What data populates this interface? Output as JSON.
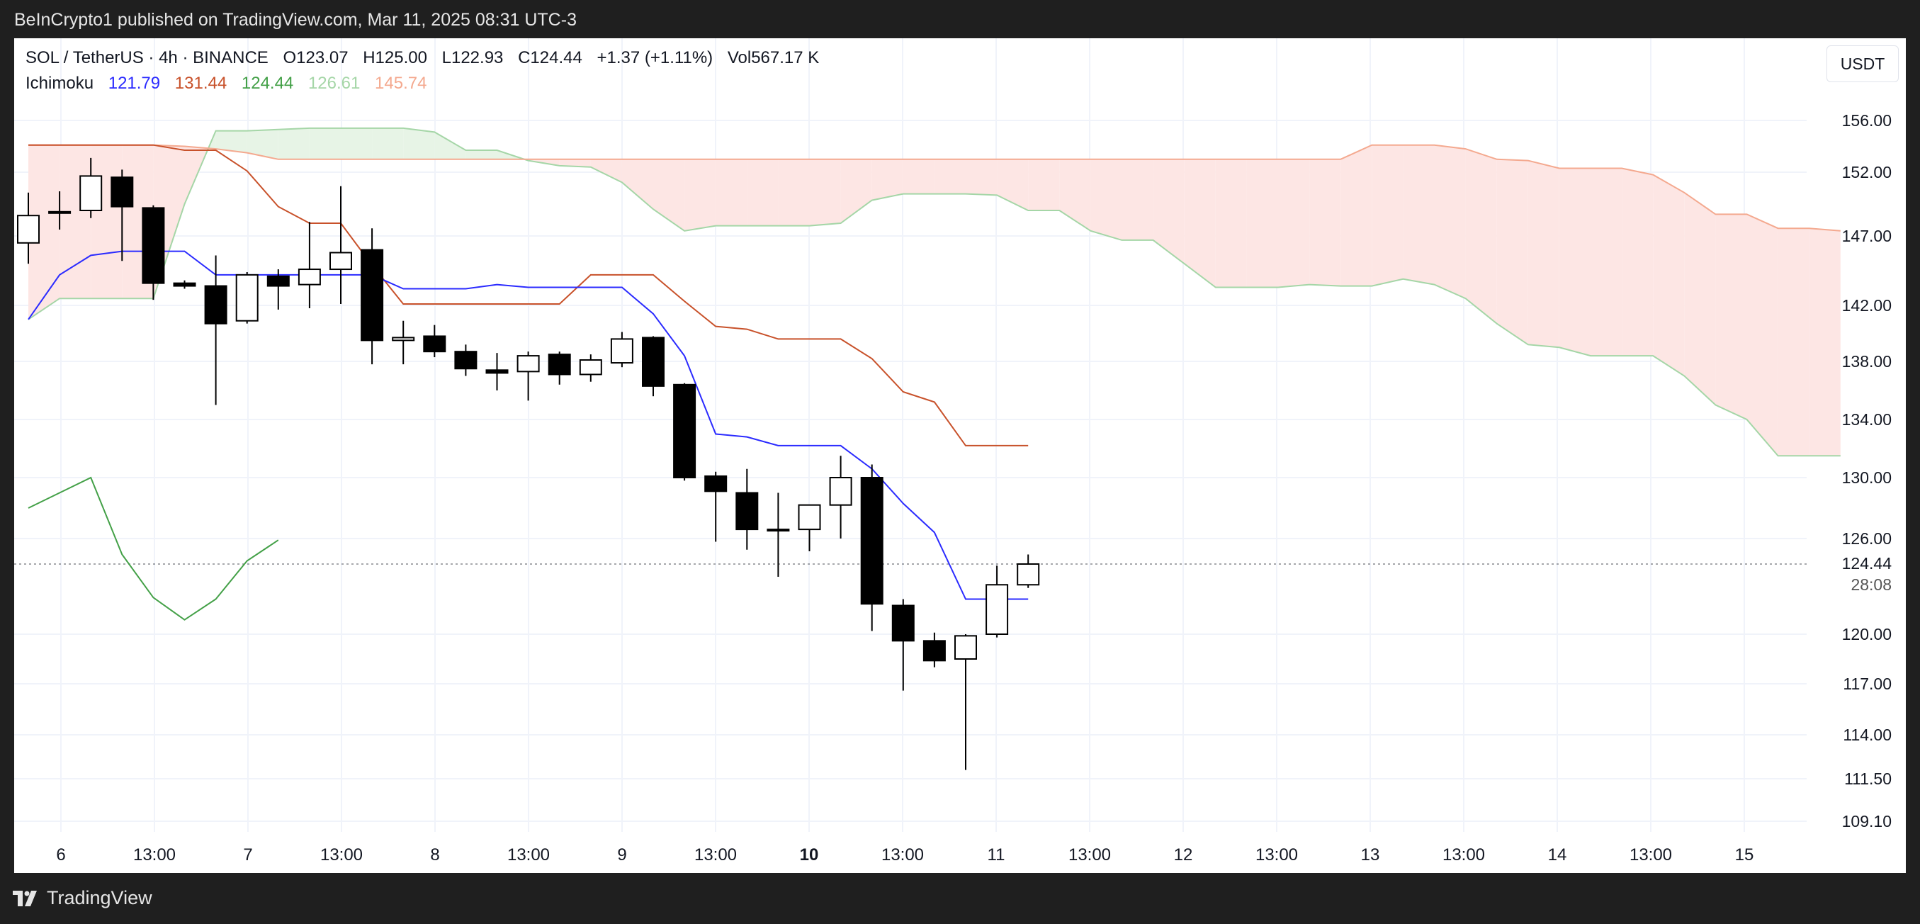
{
  "header": {
    "published_text": "BeInCrypto1 published on TradingView.com, Mar 11, 2025 08:31 UTC-3"
  },
  "legend": {
    "symbol": "SOL / TetherUS · 4h · BINANCE",
    "open": "O123.07",
    "high": "H125.00",
    "low": "L122.93",
    "close": "C124.44",
    "change": "+1.37 (+1.11%)",
    "volume": "Vol567.17 K",
    "indicator_name": "Ichimoku",
    "ichimoku_values": [
      "121.79",
      "131.44",
      "124.44",
      "126.61",
      "145.74"
    ]
  },
  "currency_button": "USDT",
  "footer": {
    "brand": "TradingView"
  },
  "colors": {
    "conversion_line": "#2b2bff",
    "base_line": "#c8512a",
    "lagging_span": "#43a047",
    "leading_span_a": "#a5d6a7",
    "leading_span_b": "#f4a98f",
    "cloud_bull": "#e7f4e6",
    "cloud_bear": "#fde6e4",
    "candle_down": "#000000",
    "candle_up": "#ffffff",
    "legend_values": [
      "#2b2bff",
      "#c8512a",
      "#43a047",
      "#a5d6a7",
      "#f4a98f"
    ]
  },
  "chart_data": {
    "type": "candlestick",
    "symbol": "SOL / TetherUS",
    "interval": "4h",
    "exchange": "BINANCE",
    "y_axis": {
      "side": "right",
      "ticks": [
        156.0,
        152.0,
        147.0,
        142.0,
        138.0,
        134.0,
        130.0,
        126.0,
        120.0,
        117.0,
        114.0,
        111.5,
        109.1
      ],
      "tick_labels": [
        "156.00",
        "152.00",
        "147.00",
        "142.00",
        "138.00",
        "134.00",
        "130.00",
        "126.00",
        "120.00",
        "117.00",
        "114.00",
        "111.50",
        "109.10"
      ],
      "last_price_label": "124.44",
      "countdown_label": "28:08"
    },
    "x_axis": {
      "tick_labels": [
        "6",
        "13:00",
        "7",
        "13:00",
        "8",
        "13:00",
        "9",
        "13:00",
        "10",
        "13:00",
        "11",
        "13:00",
        "12",
        "13:00",
        "13",
        "13:00",
        "14",
        "13:00",
        "15"
      ],
      "bold_labels": [
        "10"
      ]
    },
    "grid": true,
    "candles": [
      {
        "o": 146.5,
        "h": 150.4,
        "l": 145.0,
        "c": 148.6
      },
      {
        "o": 148.8,
        "h": 150.5,
        "l": 147.5,
        "c": 148.9
      },
      {
        "o": 149.0,
        "h": 153.1,
        "l": 148.4,
        "c": 151.7
      },
      {
        "o": 151.6,
        "h": 152.2,
        "l": 145.2,
        "c": 149.3
      },
      {
        "o": 149.2,
        "h": 149.4,
        "l": 142.4,
        "c": 143.6
      },
      {
        "o": 143.6,
        "h": 143.8,
        "l": 143.2,
        "c": 143.4
      },
      {
        "o": 143.4,
        "h": 145.6,
        "l": 135.0,
        "c": 140.7
      },
      {
        "o": 140.9,
        "h": 144.4,
        "l": 140.7,
        "c": 144.2
      },
      {
        "o": 144.1,
        "h": 144.6,
        "l": 141.7,
        "c": 143.4
      },
      {
        "o": 143.5,
        "h": 148.1,
        "l": 141.8,
        "c": 144.6
      },
      {
        "o": 144.6,
        "h": 150.9,
        "l": 142.1,
        "c": 145.8
      },
      {
        "o": 146.0,
        "h": 147.6,
        "l": 137.8,
        "c": 139.5
      },
      {
        "o": 139.5,
        "h": 140.9,
        "l": 137.8,
        "c": 139.7
      },
      {
        "o": 139.8,
        "h": 140.6,
        "l": 138.3,
        "c": 138.7
      },
      {
        "o": 138.7,
        "h": 139.2,
        "l": 137.0,
        "c": 137.5
      },
      {
        "o": 137.4,
        "h": 138.6,
        "l": 136.0,
        "c": 137.2
      },
      {
        "o": 137.3,
        "h": 138.7,
        "l": 135.3,
        "c": 138.4
      },
      {
        "o": 138.5,
        "h": 138.7,
        "l": 136.4,
        "c": 137.1
      },
      {
        "o": 137.1,
        "h": 138.5,
        "l": 136.6,
        "c": 138.1
      },
      {
        "o": 137.9,
        "h": 140.1,
        "l": 137.6,
        "c": 139.6
      },
      {
        "o": 139.7,
        "h": 139.8,
        "l": 135.6,
        "c": 136.3
      },
      {
        "o": 136.4,
        "h": 136.5,
        "l": 129.8,
        "c": 130.0
      },
      {
        "o": 130.1,
        "h": 130.4,
        "l": 125.8,
        "c": 129.1
      },
      {
        "o": 129.0,
        "h": 130.6,
        "l": 125.3,
        "c": 126.6
      },
      {
        "o": 126.6,
        "h": 129.0,
        "l": 123.6,
        "c": 126.6
      },
      {
        "o": 126.6,
        "h": 128.0,
        "l": 125.2,
        "c": 128.2
      },
      {
        "o": 128.2,
        "h": 131.5,
        "l": 126.0,
        "c": 130.0
      },
      {
        "o": 130.0,
        "h": 130.9,
        "l": 120.2,
        "c": 121.9
      },
      {
        "o": 121.8,
        "h": 122.2,
        "l": 116.6,
        "c": 119.6
      },
      {
        "o": 119.6,
        "h": 120.1,
        "l": 118.0,
        "c": 118.4
      },
      {
        "o": 118.5,
        "h": 120.0,
        "l": 112.0,
        "c": 119.9
      },
      {
        "o": 120.0,
        "h": 124.3,
        "l": 119.8,
        "c": 123.1
      },
      {
        "o": 123.1,
        "h": 125.0,
        "l": 122.9,
        "c": 124.4
      }
    ],
    "series": [
      {
        "name": "Conversion Line",
        "values": [
          [
            0,
            141.0
          ],
          [
            1,
            144.2
          ],
          [
            2,
            145.6
          ],
          [
            3,
            145.9
          ],
          [
            4,
            145.9
          ],
          [
            5,
            145.9
          ],
          [
            6,
            144.2
          ],
          [
            7,
            144.2
          ],
          [
            8,
            144.2
          ],
          [
            9,
            144.2
          ],
          [
            10,
            144.2
          ],
          [
            11,
            144.2
          ],
          [
            12,
            143.2
          ],
          [
            13,
            143.2
          ],
          [
            14,
            143.2
          ],
          [
            15,
            143.5
          ],
          [
            16,
            143.3
          ],
          [
            17,
            143.3
          ],
          [
            18,
            143.3
          ],
          [
            19,
            143.3
          ],
          [
            20,
            141.4
          ],
          [
            21,
            138.4
          ],
          [
            22,
            133.0
          ],
          [
            23,
            132.8
          ],
          [
            24,
            132.2
          ],
          [
            25,
            132.2
          ],
          [
            26,
            132.2
          ],
          [
            27,
            130.6
          ],
          [
            28,
            128.3
          ],
          [
            29,
            126.4
          ],
          [
            30,
            122.2
          ],
          [
            31,
            122.2
          ],
          [
            32,
            122.2
          ]
        ]
      },
      {
        "name": "Base Line",
        "values": [
          [
            0,
            154.1
          ],
          [
            1,
            154.1
          ],
          [
            2,
            154.1
          ],
          [
            3,
            154.1
          ],
          [
            4,
            154.1
          ],
          [
            5,
            153.7
          ],
          [
            6,
            153.7
          ],
          [
            7,
            152.1
          ],
          [
            8,
            149.3
          ],
          [
            9,
            148.0
          ],
          [
            10,
            148.0
          ],
          [
            11,
            144.9
          ],
          [
            12,
            142.1
          ],
          [
            13,
            142.1
          ],
          [
            14,
            142.1
          ],
          [
            15,
            142.1
          ],
          [
            16,
            142.1
          ],
          [
            17,
            142.1
          ],
          [
            18,
            144.2
          ],
          [
            19,
            144.2
          ],
          [
            20,
            144.2
          ],
          [
            21,
            142.3
          ],
          [
            22,
            140.5
          ],
          [
            23,
            140.3
          ],
          [
            24,
            139.6
          ],
          [
            25,
            139.6
          ],
          [
            26,
            139.6
          ],
          [
            27,
            138.2
          ],
          [
            28,
            135.9
          ],
          [
            29,
            135.2
          ],
          [
            30,
            132.2
          ],
          [
            31,
            132.2
          ],
          [
            32,
            132.2
          ]
        ]
      },
      {
        "name": "Lagging Span",
        "values": [
          [
            0,
            128.0
          ],
          [
            1,
            129.0
          ],
          [
            2,
            130.0
          ],
          [
            3,
            125.0
          ],
          [
            4,
            122.3
          ],
          [
            5,
            120.9
          ],
          [
            6,
            122.2
          ],
          [
            7,
            124.6
          ],
          [
            8,
            125.9
          ]
        ]
      },
      {
        "name": "Leading Span A",
        "values": [
          [
            0,
            141.0
          ],
          [
            1,
            142.5
          ],
          [
            2,
            142.5
          ],
          [
            3,
            142.5
          ],
          [
            4,
            142.5
          ],
          [
            5,
            149.5
          ],
          [
            6,
            155.2
          ],
          [
            7,
            155.2
          ],
          [
            8,
            155.3
          ],
          [
            9,
            155.4
          ],
          [
            10,
            155.4
          ],
          [
            11,
            155.4
          ],
          [
            12,
            155.4
          ],
          [
            13,
            155.1
          ],
          [
            14,
            153.7
          ],
          [
            15,
            153.7
          ],
          [
            16,
            152.9
          ],
          [
            17,
            152.5
          ],
          [
            18,
            152.4
          ],
          [
            19,
            151.2
          ],
          [
            20,
            149.1
          ],
          [
            21,
            147.4
          ],
          [
            22,
            147.8
          ],
          [
            23,
            147.8
          ],
          [
            24,
            147.8
          ],
          [
            25,
            147.8
          ],
          [
            26,
            148.0
          ],
          [
            27,
            149.8
          ],
          [
            28,
            150.3
          ],
          [
            29,
            150.3
          ],
          [
            30,
            150.3
          ],
          [
            31,
            150.2
          ],
          [
            32,
            149.0
          ],
          [
            33,
            149.0
          ],
          [
            34,
            147.4
          ],
          [
            35,
            146.7
          ],
          [
            36,
            146.7
          ],
          [
            37,
            145.0
          ],
          [
            38,
            143.3
          ],
          [
            39,
            143.3
          ],
          [
            40,
            143.3
          ],
          [
            41,
            143.5
          ],
          [
            42,
            143.4
          ],
          [
            43,
            143.4
          ],
          [
            44,
            143.9
          ],
          [
            45,
            143.5
          ],
          [
            46,
            142.5
          ],
          [
            47,
            140.7
          ],
          [
            48,
            139.2
          ],
          [
            49,
            139.0
          ],
          [
            50,
            138.4
          ],
          [
            51,
            138.4
          ],
          [
            52,
            138.4
          ],
          [
            53,
            137.0
          ],
          [
            54,
            135.0
          ],
          [
            55,
            134.0
          ],
          [
            56,
            131.5
          ],
          [
            57,
            131.5
          ],
          [
            58,
            131.5
          ]
        ]
      },
      {
        "name": "Leading Span B",
        "values": [
          [
            0,
            154.1
          ],
          [
            1,
            154.1
          ],
          [
            2,
            154.1
          ],
          [
            3,
            154.1
          ],
          [
            4,
            154.1
          ],
          [
            5,
            154.0
          ],
          [
            6,
            153.8
          ],
          [
            7,
            153.5
          ],
          [
            8,
            153.0
          ],
          [
            9,
            153.0
          ],
          [
            10,
            153.0
          ],
          [
            11,
            153.0
          ],
          [
            12,
            153.0
          ],
          [
            13,
            153.0
          ],
          [
            14,
            153.0
          ],
          [
            15,
            153.0
          ],
          [
            16,
            153.0
          ],
          [
            17,
            153.0
          ],
          [
            18,
            153.0
          ],
          [
            19,
            153.0
          ],
          [
            20,
            153.0
          ],
          [
            21,
            153.0
          ],
          [
            22,
            153.0
          ],
          [
            23,
            153.0
          ],
          [
            24,
            153.0
          ],
          [
            25,
            153.0
          ],
          [
            26,
            153.0
          ],
          [
            27,
            153.0
          ],
          [
            28,
            153.0
          ],
          [
            29,
            153.0
          ],
          [
            30,
            153.0
          ],
          [
            31,
            153.0
          ],
          [
            32,
            153.0
          ],
          [
            33,
            153.0
          ],
          [
            34,
            153.0
          ],
          [
            35,
            153.0
          ],
          [
            36,
            153.0
          ],
          [
            37,
            153.0
          ],
          [
            38,
            153.0
          ],
          [
            39,
            153.0
          ],
          [
            40,
            153.0
          ],
          [
            41,
            153.0
          ],
          [
            42,
            153.0
          ],
          [
            43,
            154.1
          ],
          [
            44,
            154.1
          ],
          [
            45,
            154.1
          ],
          [
            46,
            153.8
          ],
          [
            47,
            153.0
          ],
          [
            48,
            152.9
          ],
          [
            49,
            152.3
          ],
          [
            50,
            152.3
          ],
          [
            51,
            152.3
          ],
          [
            52,
            151.8
          ],
          [
            53,
            150.4
          ],
          [
            54,
            148.7
          ],
          [
            55,
            148.7
          ],
          [
            56,
            147.6
          ],
          [
            57,
            147.6
          ],
          [
            58,
            147.4
          ]
        ]
      }
    ]
  }
}
